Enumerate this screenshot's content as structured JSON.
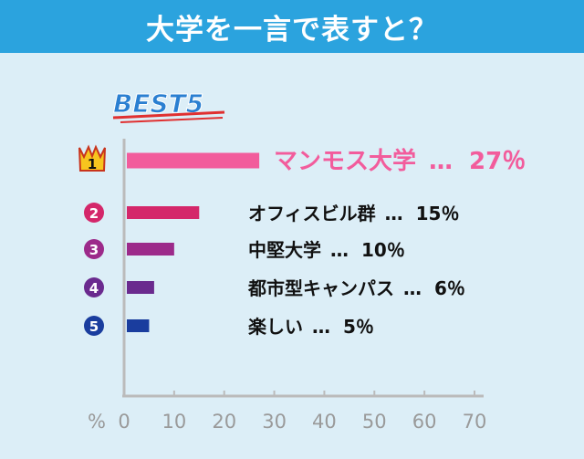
{
  "header": {
    "title": "大学を一言で表すと？"
  },
  "chart_data": {
    "type": "bar",
    "orientation": "horizontal",
    "title": "BEST5",
    "categories": [
      "マンモス大学",
      "オフィスビル群",
      "中堅大学",
      "都市型キャンパス",
      "楽しい"
    ],
    "ranks": [
      "1",
      "2",
      "3",
      "4",
      "5"
    ],
    "values": [
      27,
      15,
      10,
      6,
      5
    ],
    "value_labels": [
      "27％",
      "15％",
      "10％",
      "6％",
      "5％"
    ],
    "separator": "…",
    "xlabel": "%",
    "xlim": [
      0,
      70
    ],
    "xticks": [
      "0",
      "10",
      "20",
      "30",
      "40",
      "50",
      "60",
      "70"
    ],
    "grid": false,
    "colors": [
      "#f25c9c",
      "#d4276a",
      "#9c2a8a",
      "#6a2a8e",
      "#1a3d9e"
    ],
    "text_colors": [
      "#f25c9c",
      "#111111",
      "#111111",
      "#111111",
      "#111111"
    ],
    "axis_color": "#bbbbbb",
    "title_color": "#2a7fd1",
    "title_underline_color": "#e03030",
    "icons": [
      "crown-icon",
      "rank-2-badge-icon",
      "rank-3-badge-icon",
      "rank-4-badge-icon",
      "rank-5-badge-icon"
    ]
  }
}
